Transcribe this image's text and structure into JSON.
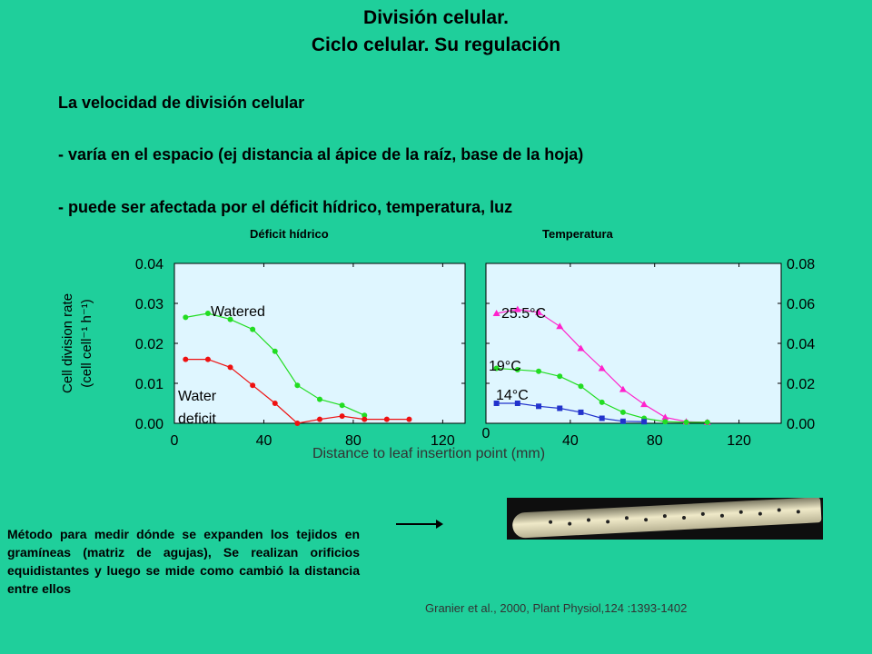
{
  "slide": {
    "title_line1": "División celular.",
    "title_line2": "Ciclo celular. Su regulación",
    "intro_line1": "La velocidad de división celular",
    "intro_line2": "- varía en el espacio (ej distancia al ápice de la raíz, base de la hoja)",
    "intro_line3": "- puede ser afectada por el déficit hídrico, temperatura, luz",
    "method_note": "Método para medir dónde se expanden los tejidos en gramíneas (matriz de agujas), Se realizan orificios equidistantes y luego se mide como cambió la distancia entre ellos",
    "citation": "Granier et al., 2000, Plant Physiol,124 :1393-1402"
  },
  "colors": {
    "background": "#1fcf9b",
    "plot_bg": "#dff6ff",
    "green": "#22dd22",
    "red": "#ee1111",
    "magenta": "#ff22cc",
    "blue": "#2233cc"
  },
  "chart_data": [
    {
      "type": "line",
      "title": "Déficit hídrico",
      "ylabel": "Cell division rate (cell cell⁻¹ h⁻¹)",
      "xlabel": "Distance to leaf insertion point (mm)",
      "xlim": [
        0,
        130
      ],
      "ylim": [
        0,
        0.04
      ],
      "xticks": [
        "0",
        "40",
        "80",
        "120"
      ],
      "yticks": [
        "0.00",
        "0.01",
        "0.02",
        "0.03",
        "0.04"
      ],
      "series": [
        {
          "name": "Watered",
          "color": "#22dd22",
          "marker": "circle",
          "x": [
            5,
            15,
            25,
            35,
            45,
            55,
            65,
            75,
            85
          ],
          "y": [
            0.0265,
            0.0275,
            0.026,
            0.0235,
            0.018,
            0.0095,
            0.006,
            0.0045,
            0.002
          ]
        },
        {
          "name": "Water deficit",
          "color": "#ee1111",
          "marker": "circle",
          "x": [
            5,
            15,
            25,
            35,
            45,
            55,
            65,
            75,
            85,
            95,
            105
          ],
          "y": [
            0.016,
            0.016,
            0.014,
            0.0095,
            0.005,
            0.0,
            0.001,
            0.0018,
            0.001,
            0.001,
            0.001
          ]
        }
      ]
    },
    {
      "type": "line",
      "title": "Temperatura",
      "xlabel": "Distance to leaf insertion point (mm)",
      "xlim": [
        0,
        140
      ],
      "ylim": [
        0,
        0.08
      ],
      "xticks": [
        "0",
        "40",
        "80",
        "120"
      ],
      "yticks": [
        "0.00",
        "0.02",
        "0.04",
        "0.06",
        "0.08"
      ],
      "series": [
        {
          "name": "25.5°C",
          "color": "#ff22cc",
          "marker": "triangle",
          "x": [
            5,
            15,
            25,
            35,
            45,
            55,
            65,
            75,
            85,
            95,
            105
          ],
          "y": [
            0.055,
            0.057,
            0.0555,
            0.0485,
            0.0375,
            0.0275,
            0.017,
            0.0095,
            0.003,
            0.0008,
            0.0005
          ]
        },
        {
          "name": "19°C",
          "color": "#22dd22",
          "marker": "circle",
          "x": [
            5,
            15,
            25,
            35,
            45,
            55,
            65,
            75,
            85,
            95,
            105
          ],
          "y": [
            0.0275,
            0.0268,
            0.026,
            0.0235,
            0.0185,
            0.0105,
            0.0055,
            0.0025,
            0.0008,
            0.0005,
            0.0005
          ]
        },
        {
          "name": "14°C",
          "color": "#2233cc",
          "marker": "square",
          "x": [
            5,
            15,
            25,
            35,
            45,
            55,
            65,
            75
          ],
          "y": [
            0.01,
            0.01,
            0.0085,
            0.0075,
            0.0055,
            0.0025,
            0.001,
            0.0008
          ]
        }
      ]
    }
  ]
}
